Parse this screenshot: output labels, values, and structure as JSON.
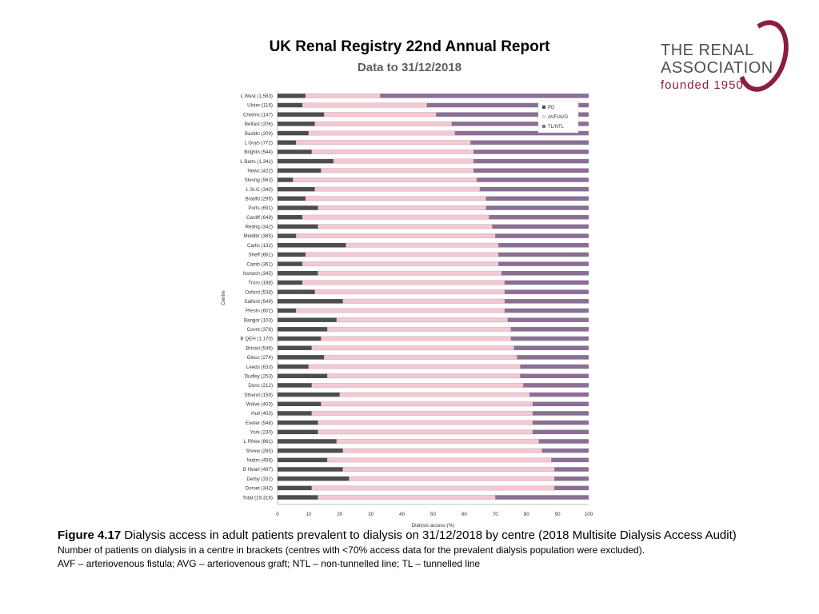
{
  "header": {
    "title": "UK Renal Registry 22nd Annual Report",
    "subtitle": "Data to 31/12/2018"
  },
  "logo": {
    "line1": "THE RENAL",
    "line2": "ASSOCIATION",
    "line3": "founded 1950"
  },
  "colors": {
    "pd": "#4d4d4d",
    "avf_avg": "#f2c9d3",
    "tl_ntl": "#8a6f94",
    "logo_brand": "#8c1d3c"
  },
  "caption": {
    "figure_label": "Figure 4.17",
    "figure_text": " Dialysis access in adult patients prevalent to dialysis on 31/12/2018 by centre (2018 Multisite Dialysis Access Audit)",
    "note1": "Number of patients on dialysis in a centre in brackets (centres with <70% access data for the prevalent dialysis population were excluded).",
    "note2": "AVF – arteriovenous fistula; AVG – arteriovenous graft; NTL – non-tunnelled line; TL – tunnelled line"
  },
  "chart_data": {
    "type": "bar",
    "orientation": "horizontal",
    "stacked": true,
    "xlabel": "Dialysis access (%)",
    "ylabel": "Centre",
    "xlim": [
      0,
      100
    ],
    "xticks": [
      0,
      10,
      20,
      30,
      40,
      50,
      60,
      70,
      80,
      90,
      100
    ],
    "legend": [
      "PD",
      "AVF/AVG",
      "TL/NTL"
    ],
    "legend_position": "top-right",
    "categories": [
      "L West (1,583)",
      "Ulster (116)",
      "Chelms (147)",
      "Belfast (206)",
      "Basldn (209)",
      "L Guys (772)",
      "Brightn (544)",
      "L Barts (1,341)",
      "Newc (422)",
      "Stevng (563)",
      "L St.G (340)",
      "Bradfd (295)",
      "Ports (691)",
      "Cardff (649)",
      "Redng (342)",
      "Middlbr (385)",
      "Carlis (132)",
      "Sheff (661)",
      "Camb (361)",
      "Norwch (345)",
      "Truro (188)",
      "Oxford (538)",
      "Salford (549)",
      "Prestn (602)",
      "Bangor (103)",
      "Covnt (378)",
      "B QEH (1,170)",
      "Bristol (546)",
      "Glouc (274)",
      "Leeds (633)",
      "Dudley (253)",
      "Donc (212)",
      "Sthend (159)",
      "Wolve (403)",
      "Hull (403)",
      "Exeter (548)",
      "York (230)",
      "L Rfree (861)",
      "Shrew (285)",
      "Nottm (456)",
      "B Heart (497)",
      "Derby (331)",
      "Dorset (342)",
      "Total (19,316)"
    ],
    "series": [
      {
        "name": "PD",
        "values": [
          9,
          8,
          15,
          12,
          10,
          6,
          11,
          18,
          14,
          5,
          12,
          9,
          13,
          8,
          13,
          6,
          22,
          9,
          8,
          13,
          8,
          12,
          21,
          6,
          19,
          16,
          14,
          11,
          15,
          10,
          16,
          11,
          20,
          14,
          11,
          13,
          13,
          19,
          21,
          16,
          21,
          23,
          11,
          13
        ]
      },
      {
        "name": "AVF/AVG",
        "values": [
          24,
          40,
          36,
          44,
          47,
          56,
          52,
          45,
          49,
          59,
          53,
          58,
          54,
          60,
          56,
          64,
          49,
          62,
          63,
          59,
          65,
          61,
          52,
          67,
          55,
          59,
          61,
          65,
          62,
          68,
          62,
          68,
          61,
          68,
          71,
          69,
          69,
          65,
          64,
          72,
          68,
          66,
          78,
          57
        ]
      },
      {
        "name": "TL/NTL",
        "values": [
          67,
          52,
          49,
          44,
          43,
          38,
          37,
          37,
          37,
          36,
          35,
          33,
          33,
          32,
          31,
          30,
          29,
          29,
          29,
          28,
          27,
          27,
          27,
          27,
          26,
          25,
          25,
          24,
          23,
          22,
          22,
          21,
          19,
          18,
          18,
          18,
          18,
          16,
          15,
          12,
          11,
          11,
          11,
          30
        ]
      }
    ]
  }
}
